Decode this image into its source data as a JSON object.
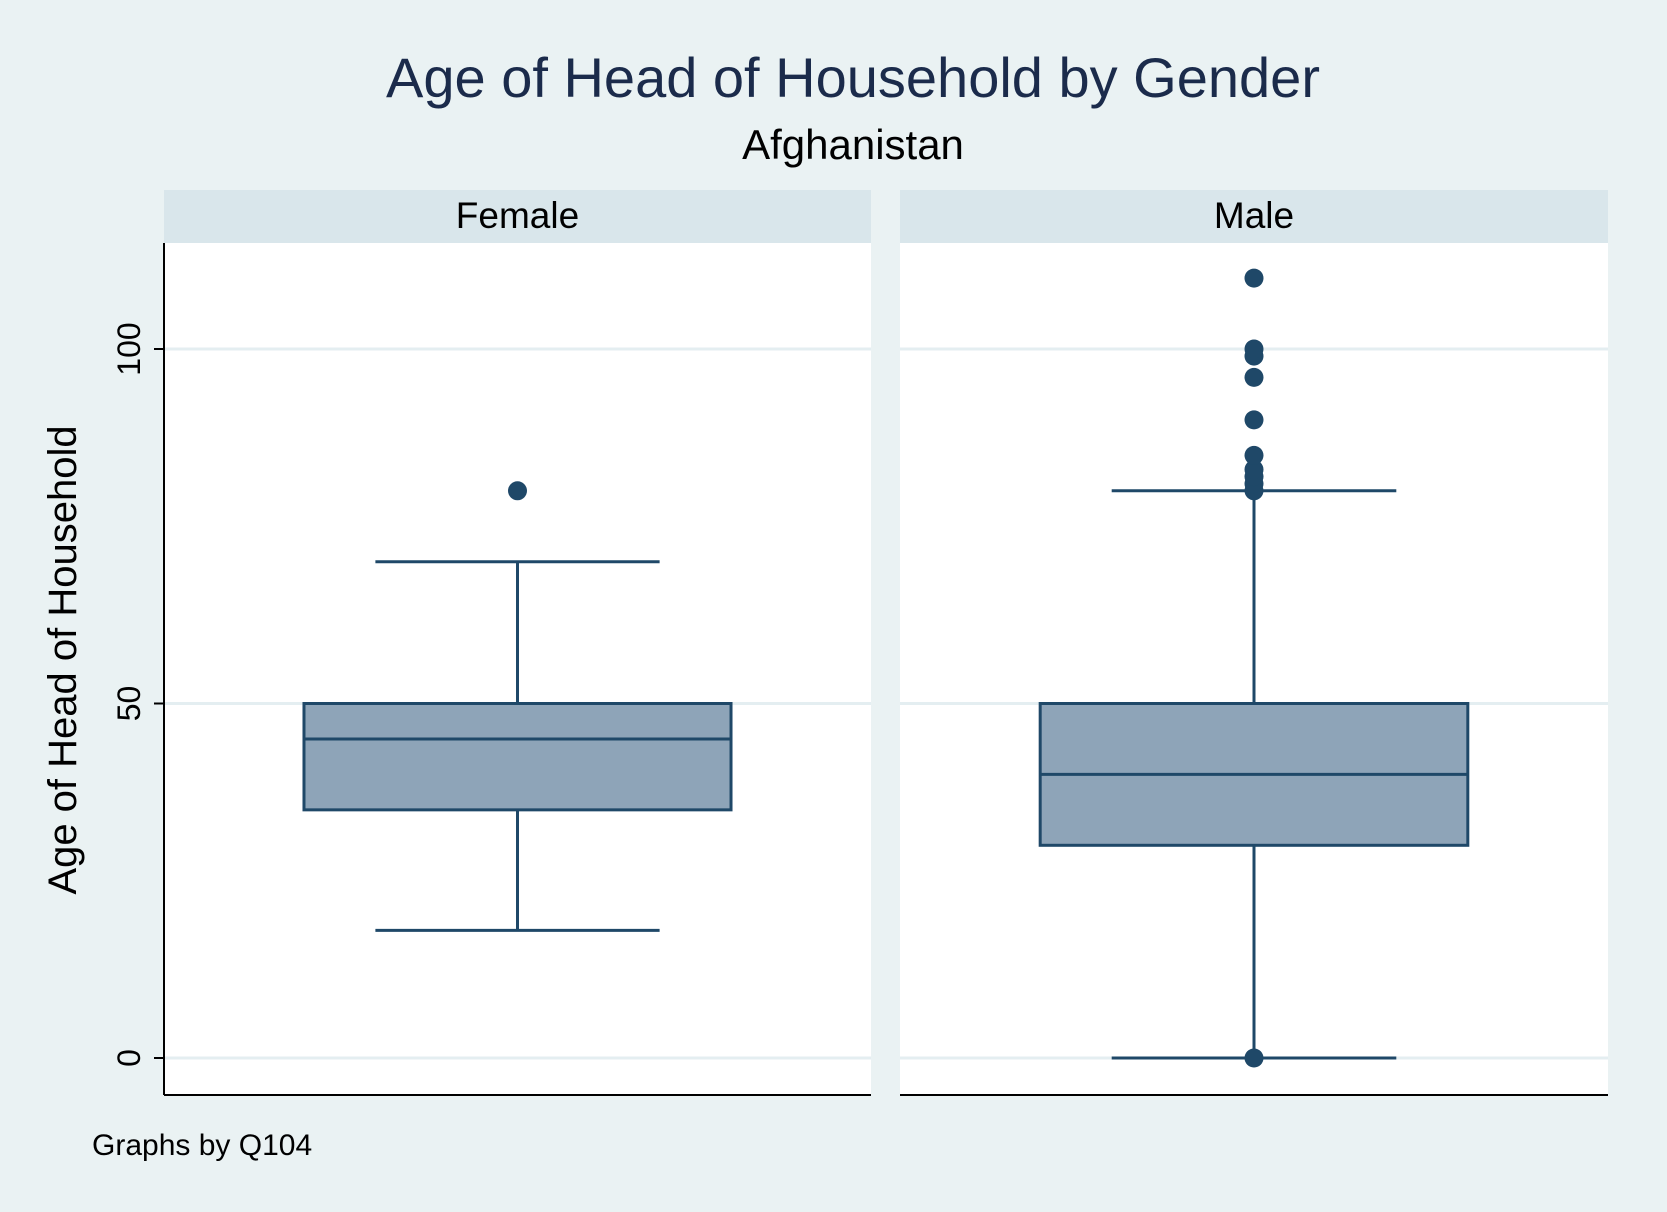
{
  "chart_data": {
    "type": "box",
    "title": "Age of Head of Household by Gender",
    "subtitle": "Afghanistan",
    "ylabel": "Age of Head of Household",
    "ylim": [
      -5,
      115
    ],
    "yticks": [
      0,
      50,
      100
    ],
    "ytick_labels": [
      "0",
      "50",
      "100"
    ],
    "grid": true,
    "note": "Graphs by Q104",
    "panels": [
      {
        "label": "Female",
        "box": {
          "whisker_low": 18,
          "q1": 35,
          "median": 45,
          "q3": 50,
          "whisker_high": 70
        },
        "outliers": [
          80
        ]
      },
      {
        "label": "Male",
        "box": {
          "whisker_low": 0,
          "q1": 30,
          "median": 40,
          "q3": 50,
          "whisker_high": 80
        },
        "outliers": [
          0,
          80,
          81,
          82,
          83,
          85,
          90,
          96,
          99,
          100,
          110
        ]
      }
    ],
    "colors": {
      "background": "#eaf2f3",
      "plot_background": "#ffffff",
      "strip_background": "#d9e6eb",
      "box_fill": "#8ea4b8",
      "box_line": "#1f4868",
      "marker": "#1f4868",
      "grid": "#e4eef1",
      "title": "#1b2b4b"
    }
  }
}
